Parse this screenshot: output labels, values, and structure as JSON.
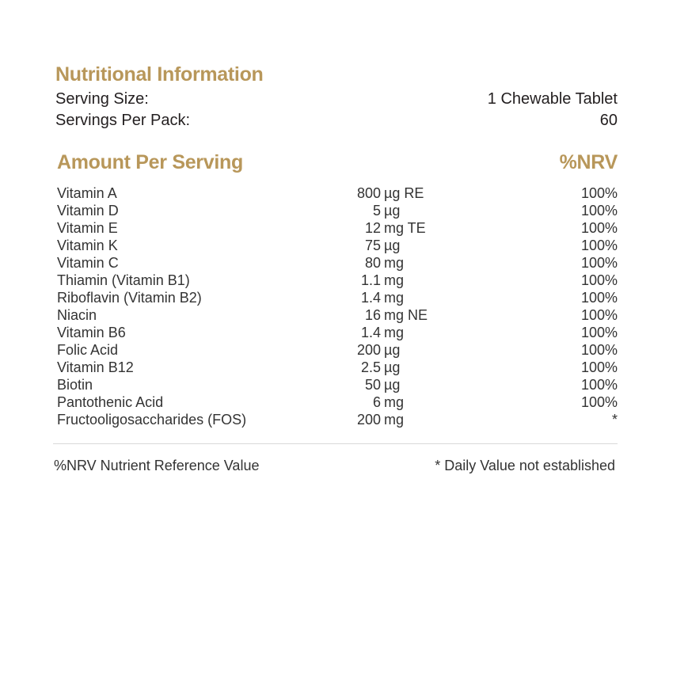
{
  "title": "Nutritional Information",
  "serving": [
    {
      "label": "Serving Size:",
      "value": "1 Chewable Tablet"
    },
    {
      "label": "Servings Per Pack:",
      "value": "60"
    }
  ],
  "section": {
    "left": "Amount Per Serving",
    "right": "%NRV"
  },
  "nutrients": [
    {
      "name": "Vitamin A",
      "num": "800",
      "unit": "µg RE",
      "nrv": "100%"
    },
    {
      "name": "Vitamin D",
      "num": "5",
      "unit": "µg",
      "nrv": "100%"
    },
    {
      "name": "Vitamin E",
      "num": "12",
      "unit": "mg TE",
      "nrv": "100%"
    },
    {
      "name": "Vitamin K",
      "num": "75",
      "unit": "µg",
      "nrv": "100%"
    },
    {
      "name": "Vitamin C",
      "num": "80",
      "unit": "mg",
      "nrv": "100%"
    },
    {
      "name": "Thiamin (Vitamin B1)",
      "num": "1.1",
      "unit": "mg",
      "nrv": "100%"
    },
    {
      "name": "Riboflavin (Vitamin B2)",
      "num": "1.4",
      "unit": "mg",
      "nrv": "100%"
    },
    {
      "name": "Niacin",
      "num": "16",
      "unit": "mg NE",
      "nrv": "100%"
    },
    {
      "name": "Vitamin B6",
      "num": "1.4",
      "unit": "mg",
      "nrv": "100%"
    },
    {
      "name": "Folic Acid",
      "num": "200",
      "unit": "µg",
      "nrv": "100%"
    },
    {
      "name": "Vitamin B12",
      "num": "2.5",
      "unit": "µg",
      "nrv": "100%"
    },
    {
      "name": "Biotin",
      "num": "50",
      "unit": "µg",
      "nrv": "100%"
    },
    {
      "name": "Pantothenic Acid",
      "num": "6",
      "unit": "mg",
      "nrv": "100%"
    },
    {
      "name": "Fructooligosaccharides (FOS)",
      "num": "200",
      "unit": "mg",
      "nrv": "*"
    }
  ],
  "footer": {
    "left": "%NRV Nutrient Reference Value",
    "right": "* Daily Value not established"
  },
  "colors": {
    "accent": "#b8975a",
    "text": "#231f20"
  }
}
